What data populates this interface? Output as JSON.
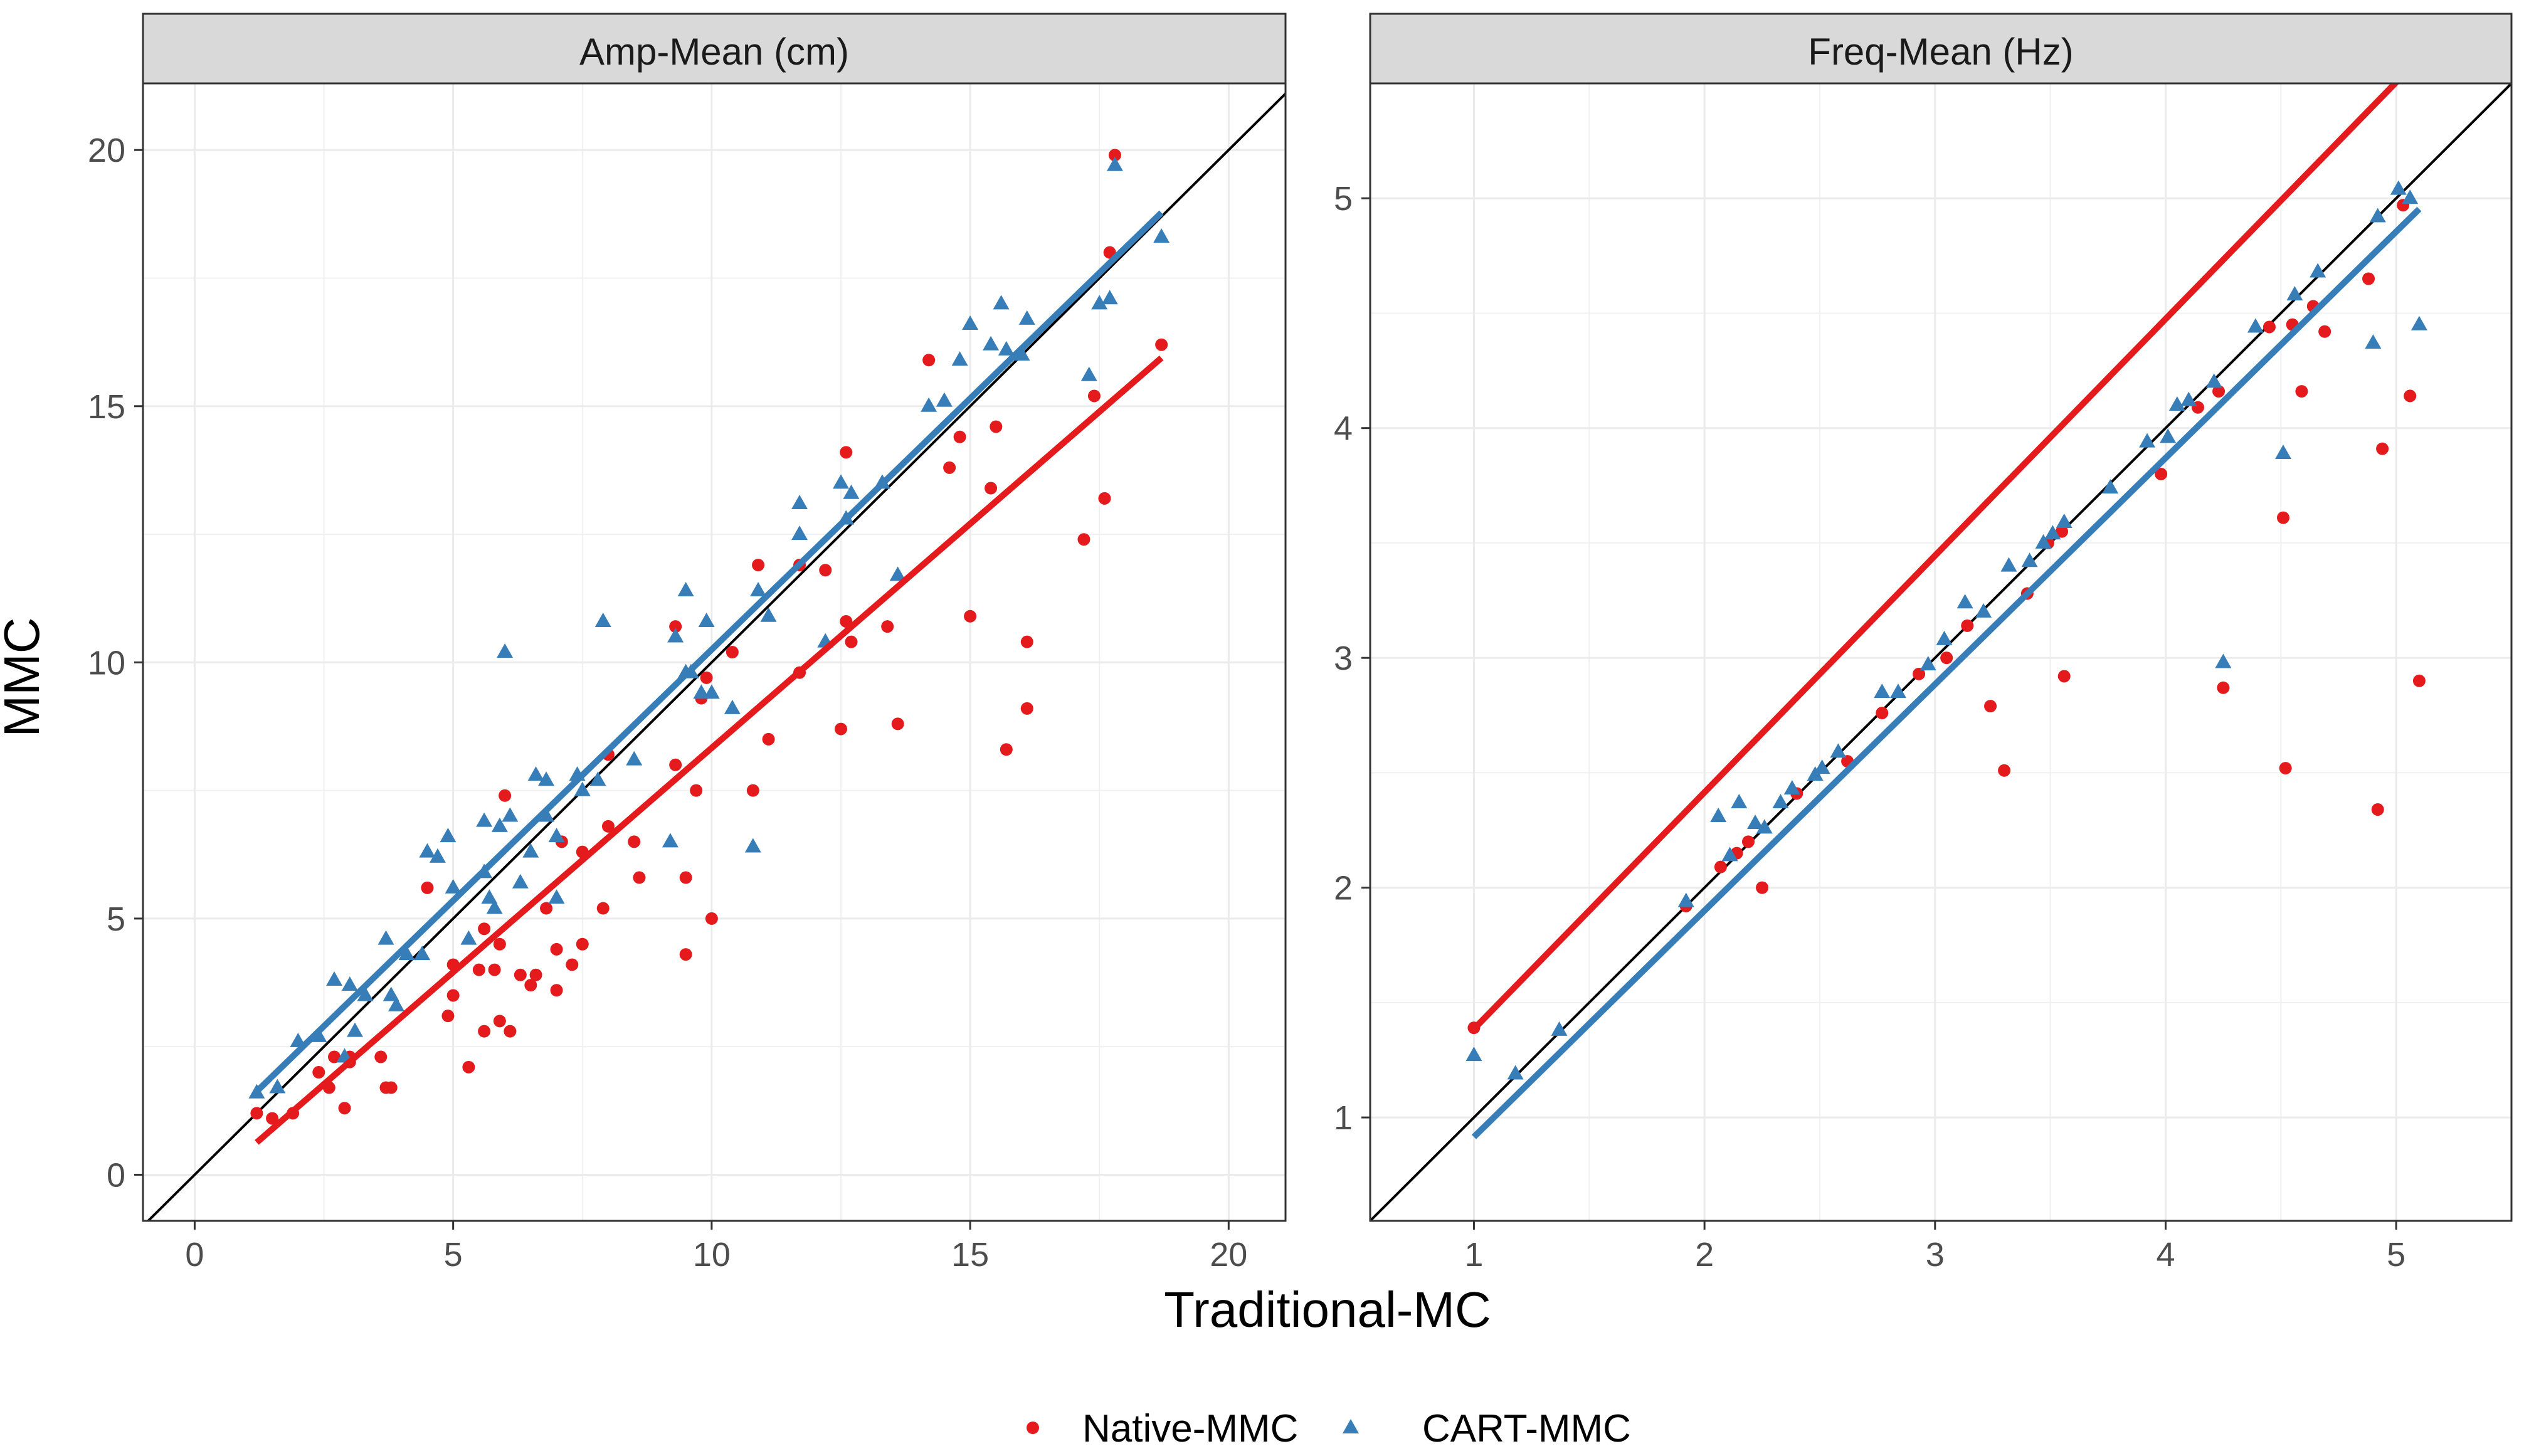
{
  "x_label": "Traditional-MC",
  "y_label": "MMC",
  "legend": [
    {
      "name": "Native-MMC",
      "color": "#e41a1c",
      "shape": "circle"
    },
    {
      "name": "CART-MMC",
      "color": "#377eb8",
      "shape": "triangle"
    }
  ],
  "chart_data": [
    {
      "type": "scatter",
      "title": "Amp-Mean (cm)",
      "xlabel": "Traditional-MC",
      "ylabel": "MMC",
      "xlim": [
        -1,
        21.1
      ],
      "ylim": [
        -0.9,
        21.3
      ],
      "xticks": [
        0,
        5,
        10,
        15,
        20
      ],
      "xtick_labels": [
        "0",
        "5",
        "10",
        "15",
        "20"
      ],
      "yticks": [
        0,
        5,
        10,
        15,
        20
      ],
      "ytick_labels": [
        "0",
        "5",
        "10",
        "15",
        "20"
      ],
      "identity_line": true,
      "series": [
        {
          "name": "Native-MMC",
          "color": "#e41a1c",
          "shape": "circle",
          "fit": {
            "intercept": -0.42,
            "slope": 0.875,
            "x_range": [
              1.2,
              18.7
            ]
          },
          "points": [
            [
              1.2,
              1.2
            ],
            [
              1.5,
              1.1
            ],
            [
              1.9,
              1.2
            ],
            [
              2.4,
              2.0
            ],
            [
              2.6,
              1.7
            ],
            [
              2.7,
              2.3
            ],
            [
              2.9,
              1.3
            ],
            [
              3.0,
              2.2
            ],
            [
              3.0,
              2.3
            ],
            [
              3.6,
              2.3
            ],
            [
              3.7,
              1.7
            ],
            [
              3.8,
              1.7
            ],
            [
              4.5,
              5.6
            ],
            [
              4.9,
              3.1
            ],
            [
              5.0,
              3.5
            ],
            [
              5.0,
              4.1
            ],
            [
              5.3,
              2.1
            ],
            [
              5.5,
              4.0
            ],
            [
              5.6,
              2.8
            ],
            [
              5.6,
              4.8
            ],
            [
              5.8,
              4.0
            ],
            [
              5.9,
              3.0
            ],
            [
              5.9,
              4.5
            ],
            [
              6.0,
              7.4
            ],
            [
              6.1,
              2.8
            ],
            [
              6.3,
              3.9
            ],
            [
              6.5,
              3.7
            ],
            [
              6.6,
              3.9
            ],
            [
              6.8,
              5.2
            ],
            [
              7.0,
              3.6
            ],
            [
              7.0,
              4.4
            ],
            [
              7.1,
              6.5
            ],
            [
              7.3,
              4.1
            ],
            [
              7.5,
              4.5
            ],
            [
              7.5,
              6.3
            ],
            [
              7.9,
              5.2
            ],
            [
              8.0,
              8.2
            ],
            [
              8.0,
              6.8
            ],
            [
              8.5,
              6.5
            ],
            [
              8.6,
              5.8
            ],
            [
              9.3,
              8.0
            ],
            [
              9.3,
              10.7
            ],
            [
              9.5,
              4.3
            ],
            [
              9.5,
              5.8
            ],
            [
              9.7,
              7.5
            ],
            [
              9.8,
              9.3
            ],
            [
              9.9,
              9.7
            ],
            [
              10.0,
              5.0
            ],
            [
              10.4,
              10.2
            ],
            [
              10.8,
              7.5
            ],
            [
              10.9,
              11.9
            ],
            [
              11.1,
              8.5
            ],
            [
              11.7,
              9.8
            ],
            [
              11.7,
              11.9
            ],
            [
              12.2,
              11.8
            ],
            [
              12.5,
              8.7
            ],
            [
              12.6,
              10.8
            ],
            [
              12.6,
              14.1
            ],
            [
              12.7,
              10.4
            ],
            [
              13.4,
              10.7
            ],
            [
              13.6,
              8.8
            ],
            [
              14.2,
              15.9
            ],
            [
              14.6,
              13.8
            ],
            [
              14.8,
              14.4
            ],
            [
              15.0,
              10.9
            ],
            [
              15.4,
              13.4
            ],
            [
              15.5,
              14.6
            ],
            [
              15.7,
              8.3
            ],
            [
              16.1,
              10.4
            ],
            [
              16.1,
              9.1
            ],
            [
              17.2,
              12.4
            ],
            [
              17.4,
              15.2
            ],
            [
              17.6,
              13.2
            ],
            [
              17.7,
              18.0
            ],
            [
              17.8,
              19.9
            ],
            [
              18.7,
              16.2
            ]
          ]
        },
        {
          "name": "CART-MMC",
          "color": "#377eb8",
          "shape": "triangle",
          "fit": {
            "intercept": 0.45,
            "slope": 0.98,
            "x_range": [
              1.2,
              18.7
            ]
          },
          "points": [
            [
              1.2,
              1.6
            ],
            [
              1.6,
              1.7
            ],
            [
              2.0,
              2.6
            ],
            [
              2.4,
              2.7
            ],
            [
              2.7,
              3.8
            ],
            [
              2.9,
              2.3
            ],
            [
              3.0,
              3.7
            ],
            [
              3.1,
              2.8
            ],
            [
              3.3,
              3.5
            ],
            [
              3.7,
              4.6
            ],
            [
              3.8,
              3.5
            ],
            [
              3.9,
              3.3
            ],
            [
              4.1,
              4.3
            ],
            [
              4.4,
              4.3
            ],
            [
              4.5,
              6.3
            ],
            [
              4.7,
              6.2
            ],
            [
              4.9,
              6.6
            ],
            [
              5.0,
              5.6
            ],
            [
              5.3,
              4.6
            ],
            [
              5.6,
              6.9
            ],
            [
              5.6,
              5.9
            ],
            [
              5.7,
              5.4
            ],
            [
              5.8,
              5.2
            ],
            [
              5.9,
              6.8
            ],
            [
              6.0,
              10.2
            ],
            [
              6.1,
              7.0
            ],
            [
              6.3,
              5.7
            ],
            [
              6.5,
              6.3
            ],
            [
              6.6,
              7.8
            ],
            [
              6.8,
              7.0
            ],
            [
              6.8,
              7.7
            ],
            [
              7.0,
              5.4
            ],
            [
              7.0,
              6.6
            ],
            [
              7.4,
              7.8
            ],
            [
              7.5,
              7.5
            ],
            [
              7.8,
              7.7
            ],
            [
              7.9,
              10.8
            ],
            [
              8.5,
              8.1
            ],
            [
              9.2,
              6.5
            ],
            [
              9.3,
              10.5
            ],
            [
              9.5,
              9.8
            ],
            [
              9.5,
              11.4
            ],
            [
              9.6,
              9.8
            ],
            [
              9.8,
              9.4
            ],
            [
              9.9,
              10.8
            ],
            [
              10.0,
              9.4
            ],
            [
              10.4,
              9.1
            ],
            [
              10.8,
              6.4
            ],
            [
              10.9,
              11.4
            ],
            [
              11.1,
              10.9
            ],
            [
              11.7,
              12.5
            ],
            [
              11.7,
              13.1
            ],
            [
              12.2,
              10.4
            ],
            [
              12.5,
              13.5
            ],
            [
              12.6,
              12.8
            ],
            [
              12.7,
              13.3
            ],
            [
              13.3,
              13.5
            ],
            [
              13.6,
              11.7
            ],
            [
              14.2,
              15.0
            ],
            [
              14.5,
              15.1
            ],
            [
              14.8,
              15.9
            ],
            [
              15.0,
              16.6
            ],
            [
              15.4,
              16.2
            ],
            [
              15.6,
              17.0
            ],
            [
              15.7,
              16.1
            ],
            [
              16.0,
              16.0
            ],
            [
              16.1,
              16.7
            ],
            [
              17.3,
              15.6
            ],
            [
              17.5,
              17.0
            ],
            [
              17.7,
              17.1
            ],
            [
              17.8,
              19.7
            ],
            [
              18.7,
              18.3
            ]
          ]
        }
      ]
    },
    {
      "type": "scatter",
      "title": "Freq-Mean (Hz)",
      "xlabel": "Traditional-MC",
      "ylabel": "MMC",
      "xlim": [
        0.55,
        5.5
      ],
      "ylim": [
        0.55,
        5.5
      ],
      "xticks": [
        1,
        2,
        3,
        4,
        5
      ],
      "xtick_labels": [
        "1",
        "2",
        "3",
        "4",
        "5"
      ],
      "yticks": [
        1,
        2,
        3,
        4,
        5
      ],
      "ytick_labels": [
        "1",
        "2",
        "3",
        "4",
        "5"
      ],
      "identity_line": true,
      "series": [
        {
          "name": "Native-MMC",
          "color": "#e41a1c",
          "shape": "circle",
          "fit": {
            "intercept": 0.355,
            "slope": 1.03,
            "x_range": [
              1.0,
              5.1
            ]
          },
          "points": [
            [
              1.0,
              1.39
            ],
            [
              1.92,
              1.92
            ],
            [
              2.07,
              2.09
            ],
            [
              2.14,
              2.15
            ],
            [
              2.19,
              2.2
            ],
            [
              2.25,
              2.0
            ],
            [
              2.4,
              2.41
            ],
            [
              2.62,
              2.55
            ],
            [
              2.77,
              2.76
            ],
            [
              2.93,
              2.93
            ],
            [
              3.05,
              3.0
            ],
            [
              3.14,
              3.14
            ],
            [
              3.24,
              2.79
            ],
            [
              3.3,
              2.51
            ],
            [
              3.4,
              3.28
            ],
            [
              3.49,
              3.5
            ],
            [
              3.55,
              3.55
            ],
            [
              3.56,
              2.92
            ],
            [
              3.98,
              3.8
            ],
            [
              4.14,
              4.09
            ],
            [
              4.23,
              4.16
            ],
            [
              4.25,
              2.87
            ],
            [
              4.45,
              4.44
            ],
            [
              4.51,
              3.61
            ],
            [
              4.52,
              2.52
            ],
            [
              4.55,
              4.45
            ],
            [
              4.59,
              4.16
            ],
            [
              4.64,
              4.53
            ],
            [
              4.69,
              4.42
            ],
            [
              4.88,
              4.65
            ],
            [
              4.92,
              2.34
            ],
            [
              4.94,
              3.91
            ],
            [
              5.03,
              4.97
            ],
            [
              5.06,
              4.14
            ],
            [
              5.1,
              2.9
            ]
          ]
        },
        {
          "name": "CART-MMC",
          "color": "#377eb8",
          "shape": "triangle",
          "fit": {
            "intercept": -0.07,
            "slope": 0.985,
            "x_range": [
              1.0,
              5.1
            ]
          },
          "points": [
            [
              1.0,
              1.27
            ],
            [
              1.18,
              1.19
            ],
            [
              1.37,
              1.38
            ],
            [
              1.92,
              1.94
            ],
            [
              2.06,
              2.31
            ],
            [
              2.11,
              2.14
            ],
            [
              2.15,
              2.37
            ],
            [
              2.22,
              2.28
            ],
            [
              2.26,
              2.26
            ],
            [
              2.33,
              2.37
            ],
            [
              2.38,
              2.43
            ],
            [
              2.48,
              2.49
            ],
            [
              2.51,
              2.52
            ],
            [
              2.58,
              2.59
            ],
            [
              2.77,
              2.85
            ],
            [
              2.84,
              2.85
            ],
            [
              2.97,
              2.97
            ],
            [
              3.04,
              3.08
            ],
            [
              3.13,
              3.24
            ],
            [
              3.21,
              3.2
            ],
            [
              3.32,
              3.4
            ],
            [
              3.41,
              3.42
            ],
            [
              3.47,
              3.5
            ],
            [
              3.51,
              3.54
            ],
            [
              3.56,
              3.59
            ],
            [
              3.76,
              3.74
            ],
            [
              3.92,
              3.94
            ],
            [
              4.01,
              3.96
            ],
            [
              4.05,
              4.1
            ],
            [
              4.1,
              4.12
            ],
            [
              4.21,
              4.2
            ],
            [
              4.25,
              2.98
            ],
            [
              4.39,
              4.44
            ],
            [
              4.51,
              3.89
            ],
            [
              4.56,
              4.58
            ],
            [
              4.66,
              4.68
            ],
            [
              4.9,
              4.37
            ],
            [
              4.92,
              4.92
            ],
            [
              5.01,
              5.04
            ],
            [
              5.06,
              5.0
            ],
            [
              5.1,
              4.45
            ]
          ]
        }
      ]
    }
  ]
}
